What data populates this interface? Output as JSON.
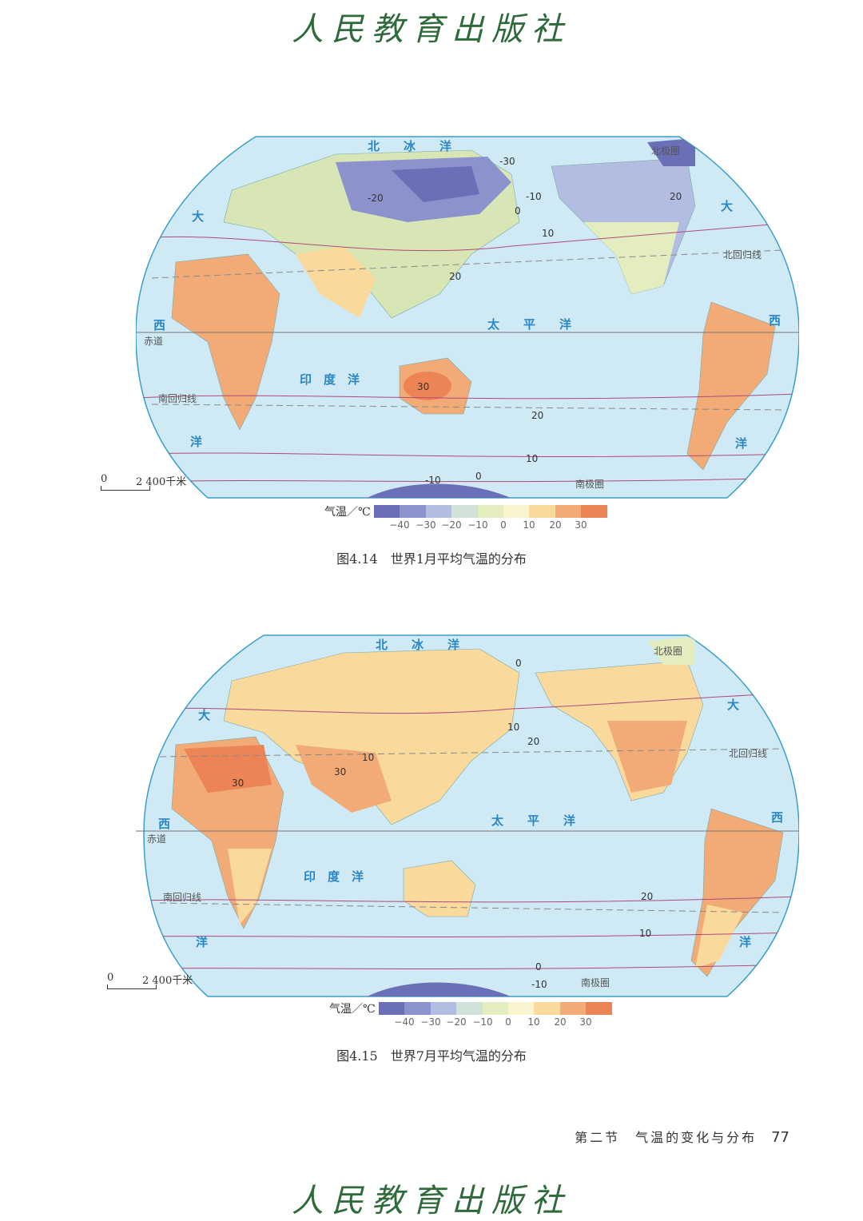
{
  "publisher_mark": "人民教育出版社",
  "maps": [
    {
      "caption": "图4.14　世界1月平均气温的分布",
      "scale_zero": "0",
      "scale_text": "2 400千米",
      "ocean_labels": {
        "north": "北　　冰　　洋",
        "pacific": "太　　平　　洋",
        "atlantic_left": [
          "大",
          "西",
          "洋"
        ],
        "atlantic_right": [
          "大",
          "西",
          "洋"
        ],
        "indian": "印　度　洋"
      },
      "line_labels": {
        "equator": "赤道",
        "tropic_north": "北回归线",
        "tropic_south": "南回归线",
        "arctic": "北极圈",
        "antarctic": "南极圈"
      },
      "isotherm_labels": [
        "-30",
        "-20",
        "-10",
        "0",
        "10",
        "20",
        "30",
        "20",
        "10",
        "0",
        "-10",
        "20"
      ]
    },
    {
      "caption": "图4.15　世界7月平均气温的分布",
      "scale_zero": "0",
      "scale_text": "2 400千米",
      "ocean_labels": {
        "north": "北　　冰　　洋",
        "pacific": "太　　平　　洋",
        "atlantic_left": [
          "大",
          "西",
          "洋"
        ],
        "atlantic_right": [
          "大",
          "西",
          "洋"
        ],
        "indian": "印　度　洋"
      },
      "line_labels": {
        "equator": "赤道",
        "tropic_north": "北回归线",
        "tropic_south": "南回归线",
        "arctic": "北极圈",
        "antarctic": "南极圈"
      },
      "isotherm_labels": [
        "0",
        "10",
        "20",
        "10",
        "30",
        "30",
        "20",
        "10",
        "0",
        "-10"
      ]
    }
  ],
  "legend": {
    "title": "气温／℃",
    "colors": [
      "#6b6fb8",
      "#8c93cc",
      "#b3bde2",
      "#cfe3d8",
      "#e3edc0",
      "#fbf5cf",
      "#f9d99c",
      "#f2ab76",
      "#ec8456"
    ],
    "ticks": [
      "−40",
      "−30",
      "−20",
      "−10",
      "0",
      "10",
      "20",
      "30"
    ]
  },
  "footer": {
    "section": "第二节　气温的变化与分布",
    "page": "77"
  }
}
